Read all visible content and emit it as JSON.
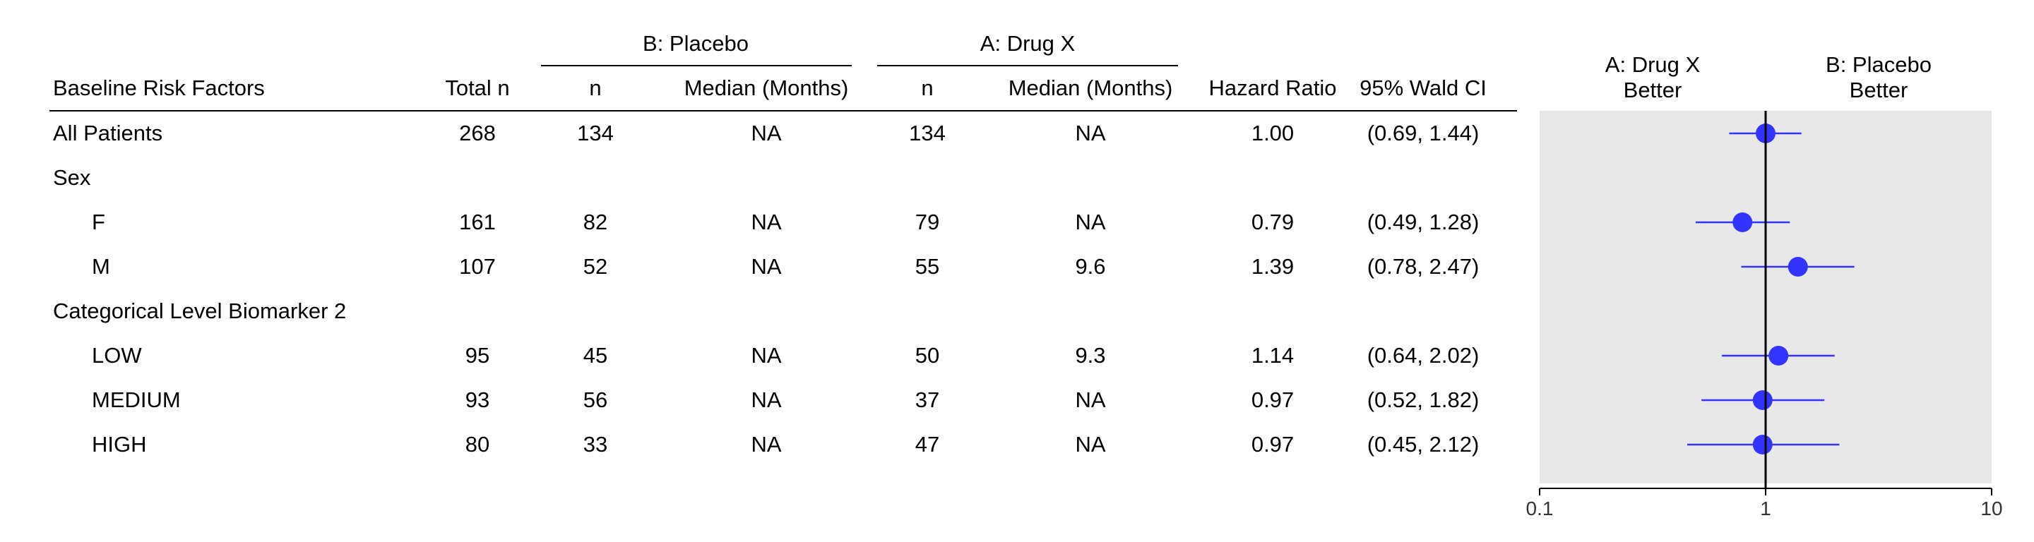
{
  "table": {
    "group_headers": {
      "placebo": "B: Placebo",
      "drug": "A: Drug X"
    },
    "columns": {
      "factors": "Baseline Risk Factors",
      "total_n": "Total n",
      "placebo_n": "n",
      "placebo_median": "Median (Months)",
      "drug_n": "n",
      "drug_median": "Median (Months)",
      "hr": "Hazard Ratio",
      "ci": "95% Wald CI"
    },
    "rows": [
      {
        "label": "All Patients",
        "total_n": "268",
        "placebo_n": "134",
        "placebo_median": "NA",
        "drug_n": "134",
        "drug_median": "NA",
        "hr": "1.00",
        "ci": "(0.69, 1.44)"
      },
      {
        "label": "Sex",
        "total_n": "",
        "placebo_n": "",
        "placebo_median": "",
        "drug_n": "",
        "drug_median": "",
        "hr": "",
        "ci": ""
      },
      {
        "label": "F",
        "total_n": "161",
        "placebo_n": "82",
        "placebo_median": "NA",
        "drug_n": "79",
        "drug_median": "NA",
        "hr": "0.79",
        "ci": "(0.49, 1.28)"
      },
      {
        "label": "M",
        "total_n": "107",
        "placebo_n": "52",
        "placebo_median": "NA",
        "drug_n": "55",
        "drug_median": "9.6",
        "hr": "1.39",
        "ci": "(0.78, 2.47)"
      },
      {
        "label": "Categorical Level Biomarker 2",
        "total_n": "",
        "placebo_n": "",
        "placebo_median": "",
        "drug_n": "",
        "drug_median": "",
        "hr": "",
        "ci": ""
      },
      {
        "label": "LOW",
        "total_n": "95",
        "placebo_n": "45",
        "placebo_median": "NA",
        "drug_n": "50",
        "drug_median": "9.3",
        "hr": "1.14",
        "ci": "(0.64, 2.02)"
      },
      {
        "label": "MEDIUM",
        "total_n": "93",
        "placebo_n": "56",
        "placebo_median": "NA",
        "drug_n": "37",
        "drug_median": "NA",
        "hr": "0.97",
        "ci": "(0.52, 1.82)"
      },
      {
        "label": "HIGH",
        "total_n": "80",
        "placebo_n": "33",
        "placebo_median": "NA",
        "drug_n": "47",
        "drug_median": "NA",
        "hr": "0.97",
        "ci": "(0.45, 2.12)"
      }
    ]
  },
  "chart_data": {
    "type": "scatter",
    "title": "",
    "xlabel": "",
    "ylabel": "",
    "x_scale": "log",
    "xlim": [
      0.1,
      10
    ],
    "x_ticks": [
      "0.1",
      "1",
      "10"
    ],
    "reference_line": 1,
    "grid": false,
    "legend": "none",
    "left_label": [
      "A: Drug X",
      "Better"
    ],
    "right_label": [
      "B: Placebo",
      "Better"
    ],
    "categories": [
      "All Patients",
      "Sex",
      "F",
      "M",
      "Categorical Level Biomarker 2",
      "LOW",
      "MEDIUM",
      "HIGH"
    ],
    "points": [
      {
        "label": "All Patients",
        "hr": 1.0,
        "lower": 0.69,
        "upper": 1.44
      },
      {
        "label": "F",
        "hr": 0.79,
        "lower": 0.49,
        "upper": 1.28
      },
      {
        "label": "M",
        "hr": 1.39,
        "lower": 0.78,
        "upper": 2.47
      },
      {
        "label": "LOW",
        "hr": 1.14,
        "lower": 0.64,
        "upper": 2.02
      },
      {
        "label": "MEDIUM",
        "hr": 0.97,
        "lower": 0.52,
        "upper": 1.82
      },
      {
        "label": "HIGH",
        "hr": 0.97,
        "lower": 0.45,
        "upper": 2.12
      }
    ],
    "colors": {
      "marker": "#3333ff",
      "panel": "#e8e8e8",
      "reference": "#000000"
    }
  }
}
